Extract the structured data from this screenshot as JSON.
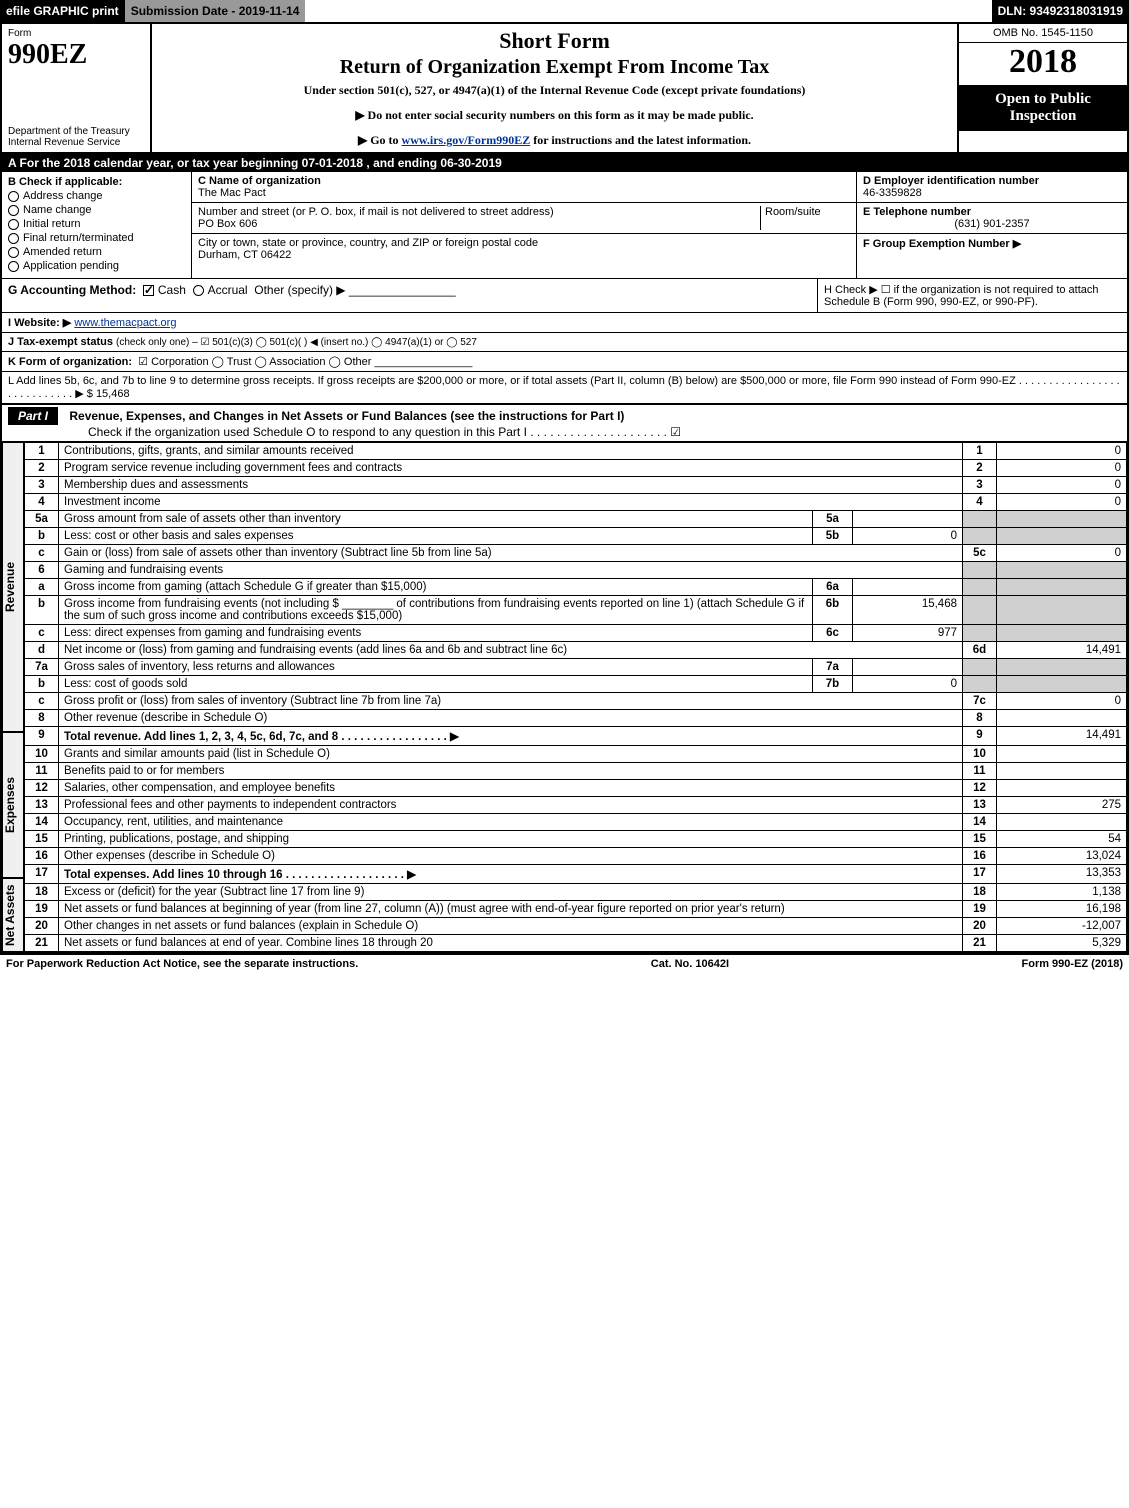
{
  "topbar": {
    "efile": "efile GRAPHIC print",
    "submission": "Submission Date - 2019-11-14",
    "dln": "DLN: 93492318031919"
  },
  "header": {
    "form_word": "Form",
    "form_number": "990EZ",
    "dept1": "Department of the Treasury",
    "dept2": "Internal Revenue Service",
    "title1": "Short Form",
    "title2": "Return of Organization Exempt From Income Tax",
    "subtitle": "Under section 501(c), 527, or 4947(a)(1) of the Internal Revenue Code (except private foundations)",
    "note1": "▶ Do not enter social security numbers on this form as it may be made public.",
    "note2_pre": "▶ Go to ",
    "note2_link": "www.irs.gov/Form990EZ",
    "note2_post": " for instructions and the latest information.",
    "omb": "OMB No. 1545-1150",
    "year": "2018",
    "open": "Open to Public Inspection"
  },
  "lineA": {
    "pre": "A  For the 2018 calendar year, or tax year beginning ",
    "begin": "07-01-2018",
    "mid": " , and ending ",
    "end": "06-30-2019"
  },
  "boxB": {
    "label": "B  Check if applicable:",
    "opts": [
      "Address change",
      "Name change",
      "Initial return",
      "Final return/terminated",
      "Amended return",
      "Application pending"
    ]
  },
  "boxC": {
    "c_lbl": "C Name of organization",
    "c_val": "The Mac Pact",
    "street_lbl": "Number and street (or P. O. box, if mail is not delivered to street address)",
    "street_val": "PO Box 606",
    "room_lbl": "Room/suite",
    "city_lbl": "City or town, state or province, country, and ZIP or foreign postal code",
    "city_val": "Durham, CT  06422"
  },
  "boxD": {
    "lbl": "D Employer identification number",
    "val": "46-3359828"
  },
  "boxE": {
    "lbl": "E Telephone number",
    "val": "(631) 901-2357"
  },
  "boxF": {
    "lbl": "F Group Exemption Number  ▶",
    "val": ""
  },
  "lineG": {
    "lbl": "G Accounting Method:",
    "cash": "Cash",
    "accrual": "Accrual",
    "other": "Other (specify) ▶"
  },
  "lineH": {
    "text": "H  Check ▶ ☐ if the organization is not required to attach Schedule B (Form 990, 990-EZ, or 990-PF)."
  },
  "lineI": {
    "lbl": "I Website: ▶",
    "val": "www.themacpact.org"
  },
  "lineJ": {
    "lbl": "J Tax-exempt status ",
    "rest": "(check only one) – ☑ 501(c)(3)  ◯ 501(c)(  ) ◀ (insert no.)  ◯ 4947(a)(1) or  ◯ 527"
  },
  "lineK": {
    "lbl": "K Form of organization:",
    "opts": "☑ Corporation  ◯ Trust  ◯ Association  ◯ Other"
  },
  "lineL": {
    "text": "L Add lines 5b, 6c, and 7b to line 9 to determine gross receipts. If gross receipts are $200,000 or more, or if total assets (Part II, column (B) below) are $500,000 or more, file Form 990 instead of Form 990-EZ  .  .  .  .  .  .  .  .  .  .  .  .  .  .  .  .  .  .  .  .  .  .  .  .  .  .  .  .  ▶ $ ",
    "amt": "15,468"
  },
  "part1": {
    "label": "Part I",
    "title": "Revenue, Expenses, and Changes in Net Assets or Fund Balances (see the instructions for Part I)",
    "check": "Check if the organization used Schedule O to respond to any question in this Part I  .  .  .  .  .  .  .  .  .  .  .  .  .  .  .  .  .  .  .  .  .  ☑"
  },
  "sections": {
    "revenue": "Revenue",
    "expenses": "Expenses",
    "netassets": "Net Assets"
  },
  "rows": [
    {
      "sec": "revenue",
      "n": "1",
      "desc": "Contributions, gifts, grants, and similar amounts received",
      "r": "1",
      "amt": "0"
    },
    {
      "sec": "revenue",
      "n": "2",
      "desc": "Program service revenue including government fees and contracts",
      "r": "2",
      "amt": "0"
    },
    {
      "sec": "revenue",
      "n": "3",
      "desc": "Membership dues and assessments",
      "r": "3",
      "amt": "0"
    },
    {
      "sec": "revenue",
      "n": "4",
      "desc": "Investment income",
      "r": "4",
      "amt": "0"
    },
    {
      "sec": "revenue",
      "n": "5a",
      "desc": "Gross amount from sale of assets other than inventory",
      "mid": "5a",
      "midamt": "",
      "shadeR": true
    },
    {
      "sec": "revenue",
      "n": "b",
      "desc": "Less: cost or other basis and sales expenses",
      "mid": "5b",
      "midamt": "0",
      "shadeR": true
    },
    {
      "sec": "revenue",
      "n": "c",
      "desc": "Gain or (loss) from sale of assets other than inventory (Subtract line 5b from line 5a)",
      "r": "5c",
      "amt": "0"
    },
    {
      "sec": "revenue",
      "n": "6",
      "desc": "Gaming and fundraising events",
      "shadeR": true,
      "noR": true
    },
    {
      "sec": "revenue",
      "n": "a",
      "desc": "Gross income from gaming (attach Schedule G if greater than $15,000)",
      "mid": "6a",
      "midamt": "",
      "shadeR": true
    },
    {
      "sec": "revenue",
      "n": "b",
      "desc": "Gross income from fundraising events (not including $ ________ of contributions from fundraising events reported on line 1) (attach Schedule G if the sum of such gross income and contributions exceeds $15,000)",
      "mid": "6b",
      "midamt": "15,468",
      "shadeR": true
    },
    {
      "sec": "revenue",
      "n": "c",
      "desc": "Less: direct expenses from gaming and fundraising events",
      "mid": "6c",
      "midamt": "977",
      "shadeR": true
    },
    {
      "sec": "revenue",
      "n": "d",
      "desc": "Net income or (loss) from gaming and fundraising events (add lines 6a and 6b and subtract line 6c)",
      "r": "6d",
      "amt": "14,491"
    },
    {
      "sec": "revenue",
      "n": "7a",
      "desc": "Gross sales of inventory, less returns and allowances",
      "mid": "7a",
      "midamt": "",
      "shadeR": true
    },
    {
      "sec": "revenue",
      "n": "b",
      "desc": "Less: cost of goods sold",
      "mid": "7b",
      "midamt": "0",
      "shadeR": true
    },
    {
      "sec": "revenue",
      "n": "c",
      "desc": "Gross profit or (loss) from sales of inventory (Subtract line 7b from line 7a)",
      "r": "7c",
      "amt": "0"
    },
    {
      "sec": "revenue",
      "n": "8",
      "desc": "Other revenue (describe in Schedule O)",
      "r": "8",
      "amt": ""
    },
    {
      "sec": "revenue",
      "n": "9",
      "desc": "Total revenue. Add lines 1, 2, 3, 4, 5c, 6d, 7c, and 8   .  .  .  .  .  .  .  .  .  .  .  .  .  .  .  .  .  ▶",
      "r": "9",
      "amt": "14,491",
      "bold": true
    },
    {
      "sec": "expenses",
      "n": "10",
      "desc": "Grants and similar amounts paid (list in Schedule O)",
      "r": "10",
      "amt": ""
    },
    {
      "sec": "expenses",
      "n": "11",
      "desc": "Benefits paid to or for members",
      "r": "11",
      "amt": ""
    },
    {
      "sec": "expenses",
      "n": "12",
      "desc": "Salaries, other compensation, and employee benefits",
      "r": "12",
      "amt": ""
    },
    {
      "sec": "expenses",
      "n": "13",
      "desc": "Professional fees and other payments to independent contractors",
      "r": "13",
      "amt": "275"
    },
    {
      "sec": "expenses",
      "n": "14",
      "desc": "Occupancy, rent, utilities, and maintenance",
      "r": "14",
      "amt": ""
    },
    {
      "sec": "expenses",
      "n": "15",
      "desc": "Printing, publications, postage, and shipping",
      "r": "15",
      "amt": "54"
    },
    {
      "sec": "expenses",
      "n": "16",
      "desc": "Other expenses (describe in Schedule O)",
      "r": "16",
      "amt": "13,024"
    },
    {
      "sec": "expenses",
      "n": "17",
      "desc": "Total expenses. Add lines 10 through 16   .  .  .  .  .  .  .  .  .  .  .  .  .  .  .  .  .  .  .  ▶",
      "r": "17",
      "amt": "13,353",
      "bold": true
    },
    {
      "sec": "netassets",
      "n": "18",
      "desc": "Excess or (deficit) for the year (Subtract line 17 from line 9)",
      "r": "18",
      "amt": "1,138"
    },
    {
      "sec": "netassets",
      "n": "19",
      "desc": "Net assets or fund balances at beginning of year (from line 27, column (A)) (must agree with end-of-year figure reported on prior year's return)",
      "r": "19",
      "amt": "16,198"
    },
    {
      "sec": "netassets",
      "n": "20",
      "desc": "Other changes in net assets or fund balances (explain in Schedule O)",
      "r": "20",
      "amt": "-12,007"
    },
    {
      "sec": "netassets",
      "n": "21",
      "desc": "Net assets or fund balances at end of year. Combine lines 18 through 20",
      "r": "21",
      "amt": "5,329"
    }
  ],
  "footer": {
    "left": "For Paperwork Reduction Act Notice, see the separate instructions.",
    "mid": "Cat. No. 10642I",
    "right": "Form 990-EZ (2018)"
  },
  "colors": {
    "black": "#000000",
    "gray": "#999999",
    "shade": "#d0d0d0",
    "link": "#003399"
  }
}
